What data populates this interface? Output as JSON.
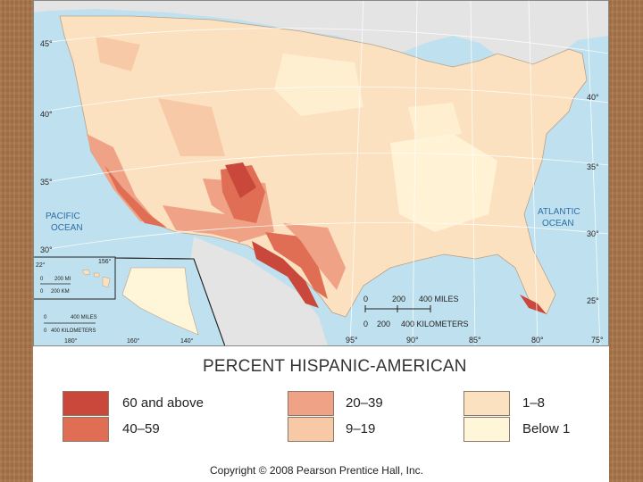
{
  "legend": {
    "title": "PERCENT HISPANIC-AMERICAN",
    "items": [
      {
        "label": "60 and above",
        "color": "#c9483b"
      },
      {
        "label": "40–59",
        "color": "#df6e54"
      },
      {
        "label": "20–39",
        "color": "#efa285"
      },
      {
        "label": "9–19",
        "color": "#f8c9a6"
      },
      {
        "label": "1–8",
        "color": "#fce1c0"
      },
      {
        "label": "Below 1",
        "color": "#fff5d8"
      }
    ]
  },
  "map": {
    "oceans": {
      "pacific": [
        "PACIFIC",
        "OCEAN"
      ],
      "atlantic": [
        "ATLANTIC",
        "OCEAN"
      ]
    },
    "latitudes_left": [
      "45°",
      "40°",
      "35°",
      "30°"
    ],
    "latitudes_right": [
      "40°",
      "35°",
      "30°",
      "25°"
    ],
    "longitudes": [
      "95°",
      "90°",
      "85°",
      "80°",
      "75°"
    ],
    "scale": {
      "miles_ticks": [
        "0",
        "200",
        "400 MILES"
      ],
      "km_ticks": [
        "0",
        "200",
        "400 KILOMETERS"
      ]
    },
    "hawaii_inset": {
      "lat": "22°",
      "lon": "156°",
      "scale_miles": [
        "0",
        "200 MI"
      ],
      "scale_km": [
        "0",
        "200 KM"
      ]
    },
    "alaska_inset": {
      "scale_miles": [
        "0",
        "400 MILES"
      ],
      "scale_km": [
        "0",
        "400 KILOMETERS"
      ],
      "longitudes": [
        "180°",
        "160°",
        "140°"
      ]
    }
  },
  "copyright": "Copyright © 2008 Pearson Prentice Hall, Inc."
}
